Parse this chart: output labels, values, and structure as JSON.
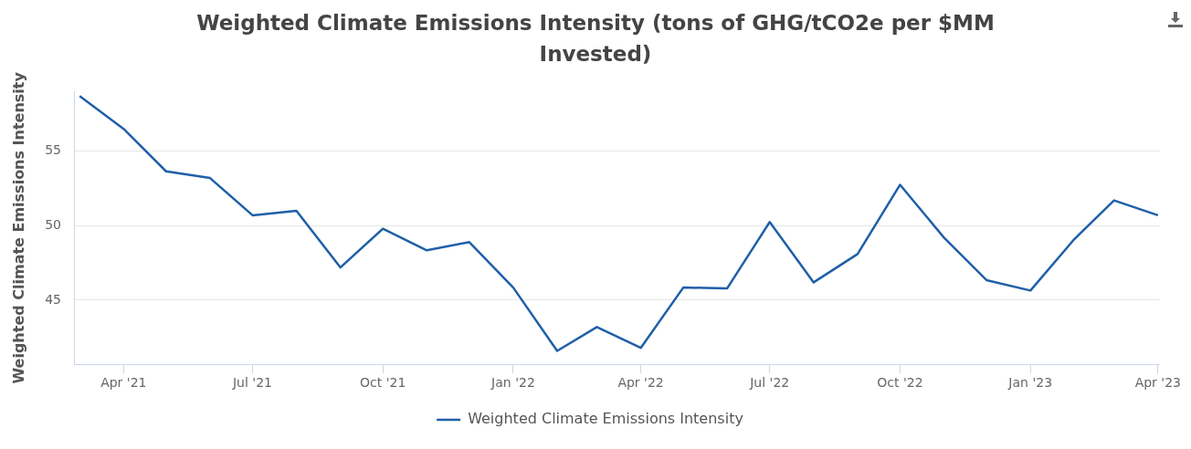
{
  "chart_data": {
    "type": "line",
    "title": "Weighted Climate Emissions Intensity (tons of GHG/tCO2e per $MM Invested)",
    "ylabel": "Weighted Climate Emissions Intensity",
    "x": [
      "2021-03",
      "2021-04",
      "2021-05",
      "2021-06",
      "2021-07",
      "2021-08",
      "2021-09",
      "2021-10",
      "2021-11",
      "2021-12",
      "2022-01",
      "2022-02",
      "2022-03",
      "2022-04",
      "2022-05",
      "2022-06",
      "2022-07",
      "2022-08",
      "2022-09",
      "2022-10",
      "2022-11",
      "2022-12",
      "2023-01",
      "2023-02",
      "2023-03",
      "2023-04"
    ],
    "series": [
      {
        "name": "Weighted Climate Emissions Intensity",
        "color": "#1f5fa8",
        "values": [
          58.7,
          56.5,
          53.65,
          53.2,
          50.7,
          51.0,
          47.2,
          49.8,
          48.35,
          48.9,
          45.85,
          41.6,
          43.2,
          41.8,
          45.85,
          45.8,
          50.25,
          46.2,
          48.1,
          52.75,
          49.2,
          46.35,
          45.65,
          49.1,
          51.7,
          50.7
        ]
      }
    ],
    "xlim": [
      "2021-02-25",
      "2023-04-02"
    ],
    "xticks": [
      {
        "value": "2021-04",
        "label": "Apr '21"
      },
      {
        "value": "2021-07",
        "label": "Jul '21"
      },
      {
        "value": "2021-10",
        "label": "Oct '21"
      },
      {
        "value": "2022-01",
        "label": "Jan '22"
      },
      {
        "value": "2022-04",
        "label": "Apr '22"
      },
      {
        "value": "2022-07",
        "label": "Jul '22"
      },
      {
        "value": "2022-10",
        "label": "Oct '22"
      },
      {
        "value": "2023-01",
        "label": "Jan '23"
      },
      {
        "value": "2023-04",
        "label": "Apr '23"
      }
    ],
    "ylim": [
      40.7,
      59
    ],
    "yticks": [
      45,
      50,
      55
    ],
    "grid": "y",
    "legend": "bottom",
    "marker": "none",
    "line_style": "solid"
  }
}
